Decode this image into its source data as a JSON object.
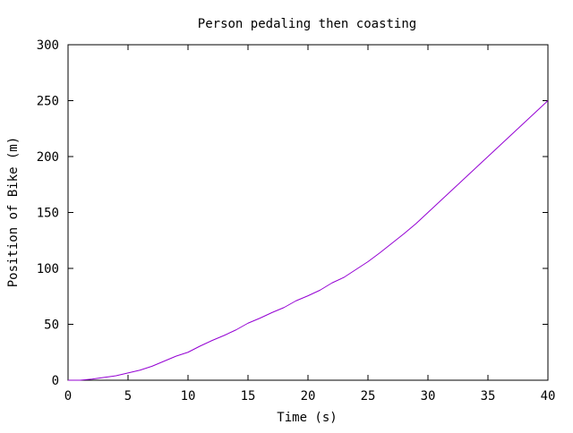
{
  "chart_data": {
    "type": "line",
    "title": "Person pedaling then coasting",
    "xlabel": "Time (s)",
    "ylabel": "Position of Bike (m)",
    "xlim": [
      0,
      40
    ],
    "ylim": [
      0,
      300
    ],
    "x_ticks": [
      0,
      5,
      10,
      15,
      20,
      25,
      30,
      35,
      40
    ],
    "y_ticks": [
      0,
      50,
      100,
      150,
      200,
      250,
      300
    ],
    "grid": false,
    "legend": "none",
    "series": [
      {
        "color": "#9400d3",
        "x": [
          0,
          1,
          2,
          3,
          4,
          5,
          6,
          7,
          8,
          9,
          10,
          11,
          12,
          13,
          14,
          15,
          16,
          17,
          18,
          19,
          20,
          21,
          22,
          23,
          24,
          25,
          26,
          27,
          28,
          29,
          30,
          31,
          32,
          33,
          34,
          35,
          36,
          37,
          38,
          39,
          40
        ],
        "y": [
          0,
          0,
          1,
          2.5,
          4,
          6.5,
          9,
          12.5,
          17,
          21.5,
          25,
          30.5,
          35.5,
          40,
          45,
          51,
          55.5,
          60.5,
          65,
          71,
          75.5,
          80.5,
          87,
          92,
          99,
          106,
          114,
          122.5,
          131,
          140,
          150,
          160,
          170,
          180,
          190,
          200,
          210,
          220,
          230,
          240,
          250
        ]
      }
    ]
  }
}
